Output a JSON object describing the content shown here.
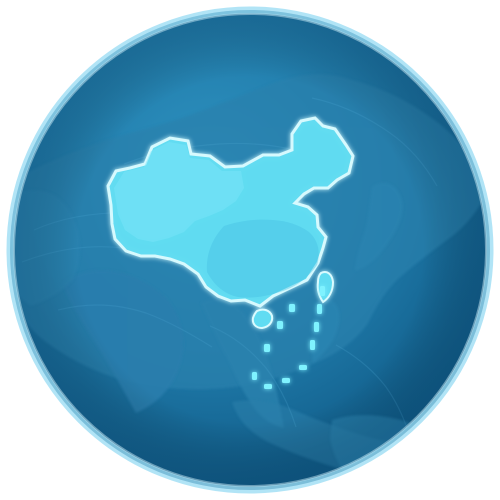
{
  "scene": {
    "subject": "globe-centered-on-east-asia",
    "highlighted_region": "china",
    "island_chain": "south-china-sea-dashed-line",
    "colors": {
      "background": "#ffffff",
      "ocean_light": "#2d90bd",
      "ocean_dark": "#0d5682",
      "rim": "#9bdcf3",
      "land": "#2b81ad",
      "highlight": "#61dcf2",
      "highlight_edge": "#d9fbff",
      "dash": "#7ff2ff"
    }
  }
}
